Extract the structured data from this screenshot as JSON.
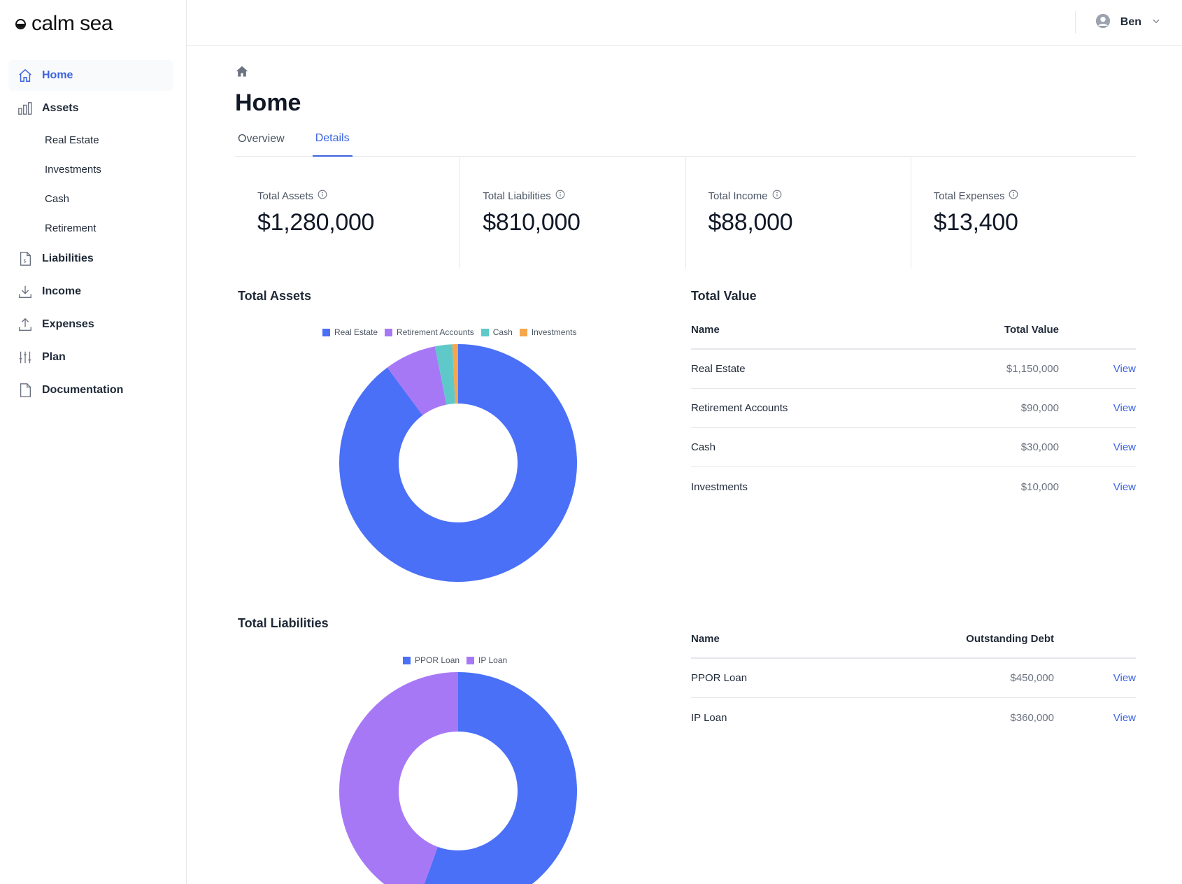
{
  "app": {
    "brand": "calm sea"
  },
  "user": {
    "name": "Ben"
  },
  "sidebar": {
    "items": [
      {
        "label": "Home",
        "icon": "home-icon",
        "active": true
      },
      {
        "label": "Assets",
        "icon": "bar-chart-icon",
        "children": [
          {
            "label": "Real Estate"
          },
          {
            "label": "Investments"
          },
          {
            "label": "Cash"
          },
          {
            "label": "Retirement"
          }
        ]
      },
      {
        "label": "Liabilities",
        "icon": "dollar-document-icon"
      },
      {
        "label": "Income",
        "icon": "download-icon"
      },
      {
        "label": "Expenses",
        "icon": "upload-icon"
      },
      {
        "label": "Plan",
        "icon": "sliders-icon"
      },
      {
        "label": "Documentation",
        "icon": "document-icon"
      }
    ]
  },
  "page": {
    "title": "Home",
    "tabs": [
      {
        "label": "Overview",
        "active": false
      },
      {
        "label": "Details",
        "active": true
      }
    ]
  },
  "stats": [
    {
      "label": "Total Assets",
      "value": "$1,280,000"
    },
    {
      "label": "Total Liabilities",
      "value": "$810,000"
    },
    {
      "label": "Total Income",
      "value": "$88,000"
    },
    {
      "label": "Total Expenses",
      "value": "$13,400"
    }
  ],
  "assets_section": {
    "title": "Total Assets",
    "table_title": "Total Value",
    "headers": {
      "name": "Name",
      "value": "Total Value"
    },
    "rows": [
      {
        "name": "Real Estate",
        "value": "$1,150,000",
        "action": "View"
      },
      {
        "name": "Retirement Accounts",
        "value": "$90,000",
        "action": "View"
      },
      {
        "name": "Cash",
        "value": "$30,000",
        "action": "View"
      },
      {
        "name": "Investments",
        "value": "$10,000",
        "action": "View"
      }
    ]
  },
  "liabilities_section": {
    "title": "Total Liabilities",
    "headers": {
      "name": "Name",
      "value": "Outstanding Debt"
    },
    "rows": [
      {
        "name": "PPOR Loan",
        "value": "$450,000",
        "action": "View"
      },
      {
        "name": "IP Loan",
        "value": "$360,000",
        "action": "View"
      }
    ]
  },
  "colors": {
    "accent": "#3b63e0",
    "real_estate": "#4a70f7",
    "retirement": "#a778f6",
    "cash": "#5fc9c9",
    "investments": "#f6a64b"
  },
  "chart_data": [
    {
      "type": "pie",
      "title": "Total Assets",
      "categories": [
        "Real Estate",
        "Retirement Accounts",
        "Cash",
        "Investments"
      ],
      "values": [
        1150000,
        90000,
        30000,
        10000
      ],
      "colors": [
        "#4a70f7",
        "#a778f6",
        "#5fc9c9",
        "#f6a64b"
      ],
      "legend": "top"
    },
    {
      "type": "pie",
      "title": "Total Liabilities",
      "categories": [
        "PPOR Loan",
        "IP Loan"
      ],
      "values": [
        450000,
        360000
      ],
      "colors": [
        "#4a70f7",
        "#a778f6"
      ],
      "legend": "top"
    }
  ]
}
